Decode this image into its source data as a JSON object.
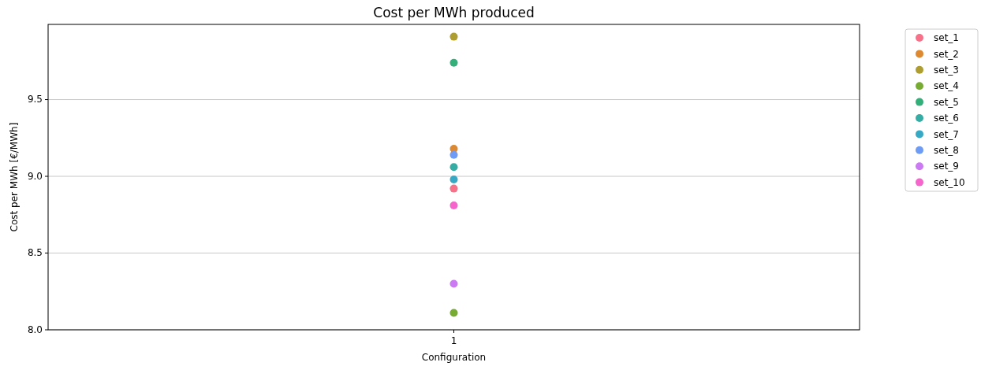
{
  "chart_data": {
    "type": "scatter",
    "title": "Cost per MWh produced",
    "xlabel": "Configuration",
    "ylabel": "Cost per MWh [€/MWh]",
    "categories": [
      "1"
    ],
    "ylim": [
      8,
      9.99
    ],
    "yticks": [
      {
        "value": 8,
        "label": "8.0"
      },
      {
        "value": 8.5,
        "label": "8.5"
      },
      {
        "value": 9,
        "label": "9.0"
      },
      {
        "value": 9.5,
        "label": "9.5"
      }
    ],
    "grid": "y",
    "legend": "top right",
    "marker": "circle",
    "series": [
      {
        "name": "set_1",
        "color": "#f77189",
        "values": [
          8.92
        ]
      },
      {
        "name": "set_2",
        "color": "#dc8932",
        "values": [
          9.18
        ]
      },
      {
        "name": "set_3",
        "color": "#ae9d31",
        "values": [
          9.91
        ]
      },
      {
        "name": "set_4",
        "color": "#77ab31",
        "values": [
          8.11
        ]
      },
      {
        "name": "set_5",
        "color": "#33b07a",
        "values": [
          9.74
        ]
      },
      {
        "name": "set_6",
        "color": "#36ada4",
        "values": [
          9.06
        ]
      },
      {
        "name": "set_7",
        "color": "#38a9c5",
        "values": [
          8.98
        ]
      },
      {
        "name": "set_8",
        "color": "#6e9bf4",
        "values": [
          9.14
        ]
      },
      {
        "name": "set_9",
        "color": "#cc7af4",
        "values": [
          8.3
        ]
      },
      {
        "name": "set_10",
        "color": "#f565cc",
        "values": [
          8.81
        ]
      }
    ]
  }
}
